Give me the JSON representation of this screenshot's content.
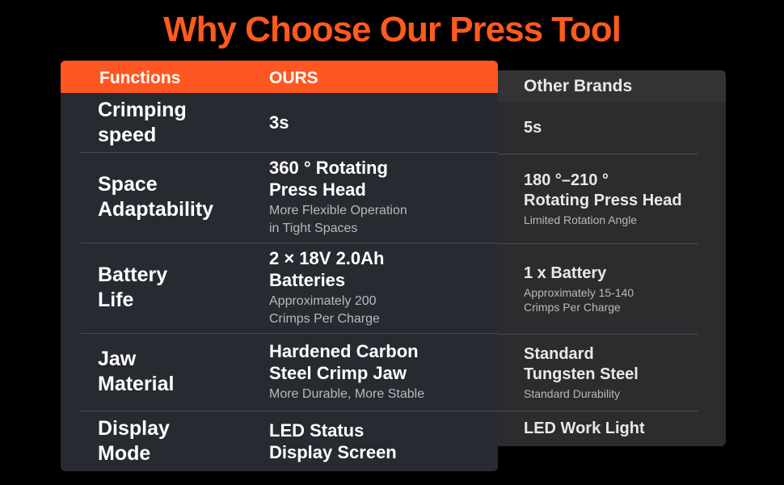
{
  "header": {
    "title": "Why Choose Our Press Tool"
  },
  "table": {
    "headers": [
      "Functions",
      "OURS",
      "Other Brands"
    ],
    "rows": [
      {
        "function": "Crimping\nspeed",
        "ours": {
          "main": "3s"
        },
        "other": {
          "main": "5s"
        }
      },
      {
        "function": "Space\nAdaptability",
        "ours": {
          "main": "360 ° Rotating\nPress Head",
          "sub": "More Flexible Operation\nin Tight Spaces"
        },
        "other": {
          "main": "180 °–210 °\nRotating Press Head",
          "sub": "Limited Rotation Angle"
        }
      },
      {
        "function": "Battery\nLife",
        "ours": {
          "main": "2 × 18V 2.0Ah\nBatteries",
          "sub": "Approximately 200\nCrimps Per Charge"
        },
        "other": {
          "main": "1 x Battery",
          "sub": "Approximately 15-140\nCrimps Per Charge"
        }
      },
      {
        "function": "Jaw\nMaterial",
        "ours": {
          "main": "Hardened Carbon\nSteel Crimp Jaw",
          "sub": "More Durable, More Stable"
        },
        "other": {
          "main": "Standard\nTungsten Steel",
          "sub": "Standard Durability"
        }
      },
      {
        "function": "Display\nMode",
        "ours": {
          "main": "LED Status\nDisplay Screen"
        },
        "other": {
          "main": "LED Work Light"
        }
      }
    ]
  }
}
